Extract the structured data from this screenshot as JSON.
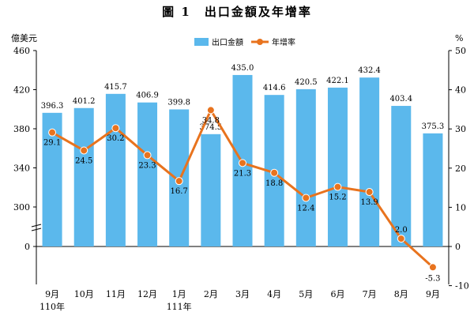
{
  "title": "圖 1　出口金額及年增率",
  "chart_data": {
    "type": "bar+line",
    "left_axis_unit": "億美元",
    "right_axis_unit": "%",
    "categories": [
      "9月",
      "10月",
      "11月",
      "12月",
      "1月",
      "2月",
      "3月",
      "4月",
      "5月",
      "6月",
      "7月",
      "8月",
      "9月"
    ],
    "category_sublabels": [
      "110年",
      "",
      "",
      "",
      "111年",
      "",
      "",
      "",
      "",
      "",
      "",
      "",
      ""
    ],
    "left_ticks": [
      "0",
      "300",
      "340",
      "380",
      "420",
      "460"
    ],
    "right_ticks": [
      "-10",
      "0",
      "10",
      "20",
      "30",
      "40",
      "50"
    ],
    "left_axis_break": true,
    "series": [
      {
        "name": "出口金額",
        "type": "bar",
        "color": "#5BB8EC",
        "values": [
          396.3,
          401.2,
          415.7,
          406.9,
          399.8,
          374.5,
          435.0,
          414.6,
          420.5,
          422.1,
          432.4,
          403.4,
          375.3
        ],
        "labels": [
          "396.3",
          "401.2",
          "415.7",
          "406.9",
          "399.8",
          "374.5",
          "435.0",
          "414.6",
          "420.5",
          "422.1",
          "432.4",
          "403.4",
          "375.3"
        ]
      },
      {
        "name": "年增率",
        "type": "line",
        "color": "#E8731E",
        "values": [
          29.1,
          24.5,
          30.2,
          23.3,
          16.7,
          34.8,
          21.3,
          18.8,
          12.4,
          15.2,
          13.9,
          2.0,
          -5.3
        ],
        "labels": [
          "29.1",
          "24.5",
          "30.2",
          "23.3",
          "16.7",
          "34.8",
          "21.3",
          "18.8",
          "12.4",
          "15.2",
          "13.9",
          "2.0",
          "-5.3"
        ]
      }
    ],
    "legend": "top-center"
  }
}
